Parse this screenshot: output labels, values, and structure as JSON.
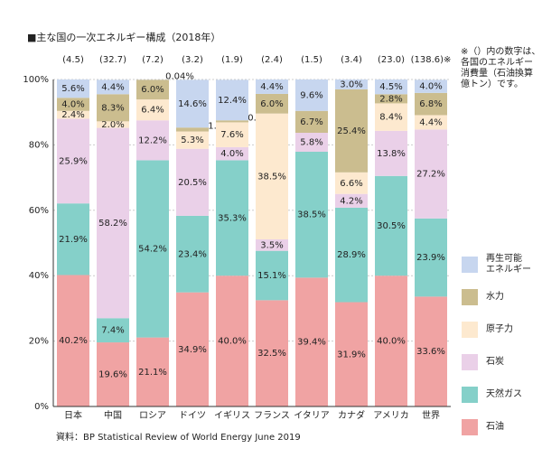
{
  "chart_data": {
    "type": "stacked_bar",
    "title": "■主な国の一次エネルギー構成（2018年）",
    "note": "※（）内の数字は、\n各国のエネルギー\n消費量（石油換算\n億トン）です。",
    "source": "資料：BP Statistical Review of World Energy June 2019",
    "categories": [
      "日本",
      "中国",
      "ロシア",
      "ドイツ",
      "イギリス",
      "フランス",
      "イタリア",
      "カナダ",
      "アメリカ",
      "世界"
    ],
    "totals": {
      "values": [
        4.5,
        32.7,
        7.2,
        3.2,
        1.9,
        2.4,
        1.5,
        3.4,
        23.0,
        138.6
      ],
      "value_labels": [
        "(4.5)",
        "(32.7)",
        "(7.2)",
        "(3.2)",
        "(1.9)",
        "(2.4)",
        "(1.5)",
        "(3.4)",
        "(23.0)",
        "(138.6)※"
      ]
    },
    "ylim": [
      0,
      100
    ],
    "yticks": [
      {
        "value": 0,
        "label": "0%"
      },
      {
        "value": 20,
        "label": "20%"
      },
      {
        "value": 40,
        "label": "40%"
      },
      {
        "value": 60,
        "label": "60%"
      },
      {
        "value": 80,
        "label": "80%"
      },
      {
        "value": 100,
        "label": "100%"
      }
    ],
    "grid": true,
    "legend": "right",
    "series": [
      {
        "name": "石油",
        "color": "#f0a3a3",
        "values": [
          40.2,
          19.6,
          21.1,
          34.9,
          40.0,
          32.5,
          39.4,
          31.9,
          40.0,
          33.6
        ],
        "value_labels": [
          "40.2%",
          "19.6%",
          "21.1%",
          "34.9%",
          "40.0%",
          "32.5%",
          "39.4%",
          "31.9%",
          "40.0%",
          "33.6%"
        ]
      },
      {
        "name": "天然ガス",
        "color": "#85d0c9",
        "values": [
          21.9,
          7.4,
          54.2,
          23.4,
          35.3,
          15.1,
          38.5,
          28.9,
          30.5,
          23.9
        ],
        "value_labels": [
          "21.9%",
          "7.4%",
          "54.2%",
          "23.4%",
          "35.3%",
          "15.1%",
          "38.5%",
          "28.9%",
          "30.5%",
          "23.9%"
        ]
      },
      {
        "name": "石炭",
        "color": "#ead0e8",
        "values": [
          25.9,
          58.2,
          12.2,
          20.5,
          4.0,
          3.5,
          5.8,
          4.2,
          13.8,
          27.2
        ],
        "value_labels": [
          "25.9%",
          "58.2%",
          "12.2%",
          "20.5%",
          "4.0%",
          "3.5%",
          "5.8%",
          "4.2%",
          "13.8%",
          "27.2%"
        ]
      },
      {
        "name": "原子力",
        "color": "#fde9cf",
        "values": [
          2.4,
          2.0,
          6.4,
          5.3,
          7.6,
          38.5,
          null,
          6.6,
          8.4,
          4.4
        ],
        "value_labels": [
          "2.4%",
          "2.0%",
          "6.4%",
          "5.3%",
          "7.6%",
          "38.5%",
          null,
          "6.6%",
          "8.4%",
          "4.4%"
        ]
      },
      {
        "name": "水力",
        "color": "#cbbd8f",
        "values": [
          4.0,
          8.3,
          6.0,
          1.2,
          0.6,
          6.0,
          6.7,
          25.4,
          2.8,
          6.8
        ],
        "value_labels": [
          "4.0%",
          "8.3%",
          "6.0%",
          "1.2%",
          "0.6%",
          "6.0%",
          "6.7%",
          "25.4%",
          "2.8%",
          "6.8%"
        ]
      },
      {
        "name": "再生可能\nエネルギー",
        "color": "#c7d6ef",
        "values": [
          5.6,
          4.4,
          0.04,
          14.6,
          12.4,
          4.4,
          9.6,
          3.0,
          4.5,
          4.0
        ],
        "value_labels": [
          "5.6%",
          "4.4%",
          "0.04%",
          "14.6%",
          "12.4%",
          "4.4%",
          "9.6%",
          "3.0%",
          "4.5%",
          "4.0%"
        ]
      }
    ]
  }
}
